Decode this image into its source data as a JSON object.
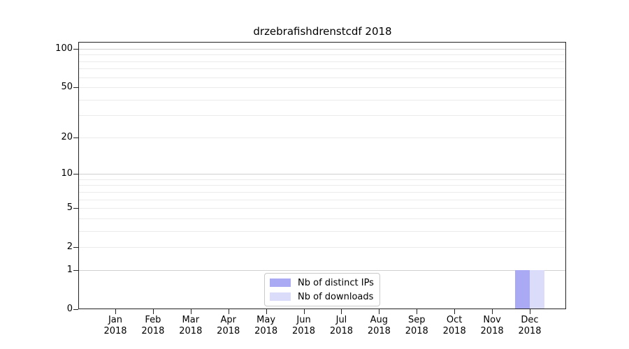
{
  "title": "drzebrafishdrenstcdf 2018",
  "chart_data": {
    "type": "bar",
    "title": "drzebrafishdrenstcdf 2018",
    "categories": [
      "Jan",
      "Feb",
      "Mar",
      "Apr",
      "May",
      "Jun",
      "Jul",
      "Aug",
      "Sep",
      "Oct",
      "Nov",
      "Dec"
    ],
    "year": "2018",
    "series": [
      {
        "name": "Nb of distinct IPs",
        "color": "#a9a9f4",
        "values": [
          0,
          0,
          0,
          0,
          0,
          0,
          0,
          0,
          0,
          0,
          0,
          1
        ]
      },
      {
        "name": "Nb of downloads",
        "color": "#dbdbfa",
        "values": [
          0,
          0,
          0,
          0,
          0,
          0,
          0,
          0,
          0,
          0,
          0,
          1
        ]
      }
    ],
    "y_axis": {
      "scale": "log1p",
      "ticks": [
        0,
        1,
        2,
        5,
        10,
        20,
        50,
        100
      ],
      "gridlines_major": [
        1,
        10,
        100
      ],
      "gridlines_minor": [
        2,
        3,
        4,
        5,
        6,
        7,
        8,
        9,
        20,
        30,
        40,
        50,
        60,
        70,
        80,
        90
      ],
      "ylim": [
        0,
        112
      ]
    },
    "legend": {
      "position": "lower center"
    },
    "grid": true
  },
  "colors": {
    "background": "#ffffff",
    "spine": "#222222",
    "grid_major": "#d0d0d0",
    "grid_minor": "#ebebeb",
    "legend_border": "#c9c9c9",
    "text": "#000000"
  }
}
